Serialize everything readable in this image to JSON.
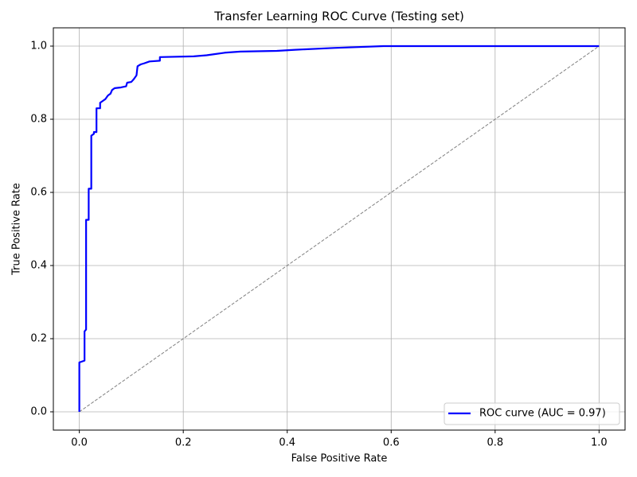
{
  "chart_data": {
    "type": "line",
    "title": "Transfer Learning ROC Curve (Testing set)",
    "xlabel": "False Positive Rate",
    "ylabel": "True Positive Rate",
    "xlim": [
      -0.05,
      1.05
    ],
    "ylim": [
      -0.05,
      1.05
    ],
    "xticks": [
      {
        "value": 0,
        "label": "0.0"
      },
      {
        "value": 0.2,
        "label": "0.2"
      },
      {
        "value": 0.4,
        "label": "0.4"
      },
      {
        "value": 0.6,
        "label": "0.6"
      },
      {
        "value": 0.8,
        "label": "0.8"
      },
      {
        "value": 1,
        "label": "1.0"
      }
    ],
    "yticks": [
      {
        "value": 0,
        "label": "0.0"
      },
      {
        "value": 0.2,
        "label": "0.2"
      },
      {
        "value": 0.4,
        "label": "0.4"
      },
      {
        "value": 0.6,
        "label": "0.6"
      },
      {
        "value": 0.8,
        "label": "0.8"
      },
      {
        "value": 1,
        "label": "1.0"
      }
    ],
    "grid": true,
    "legend": "lower right",
    "series": [
      {
        "name": "ROC curve (AUC = 0.97)",
        "color": "#0000ff",
        "linestyle": "solid",
        "x": [
          0,
          0,
          0.01,
          0.01,
          0.013,
          0.013,
          0.018,
          0.018,
          0.023,
          0.023,
          0.028,
          0.028,
          0.033,
          0.033,
          0.04,
          0.04,
          0.045,
          0.05,
          0.055,
          0.06,
          0.063,
          0.068,
          0.08,
          0.09,
          0.092,
          0.1,
          0.105,
          0.11,
          0.112,
          0.118,
          0.125,
          0.135,
          0.155,
          0.155,
          0.22,
          0.245,
          0.26,
          0.28,
          0.31,
          0.38,
          0.415,
          0.49,
          0.585,
          1.0
        ],
        "values": [
          0,
          0.135,
          0.14,
          0.22,
          0.225,
          0.525,
          0.525,
          0.61,
          0.61,
          0.755,
          0.76,
          0.765,
          0.765,
          0.83,
          0.83,
          0.845,
          0.85,
          0.855,
          0.865,
          0.87,
          0.88,
          0.885,
          0.887,
          0.89,
          0.9,
          0.902,
          0.91,
          0.92,
          0.945,
          0.95,
          0.953,
          0.958,
          0.96,
          0.97,
          0.972,
          0.975,
          0.978,
          0.982,
          0.985,
          0.987,
          0.99,
          0.995,
          1.0,
          1.0
        ]
      },
      {
        "color": "#808080",
        "linestyle": "dashed",
        "x": [
          0,
          1
        ],
        "values": [
          0,
          1
        ]
      }
    ]
  }
}
